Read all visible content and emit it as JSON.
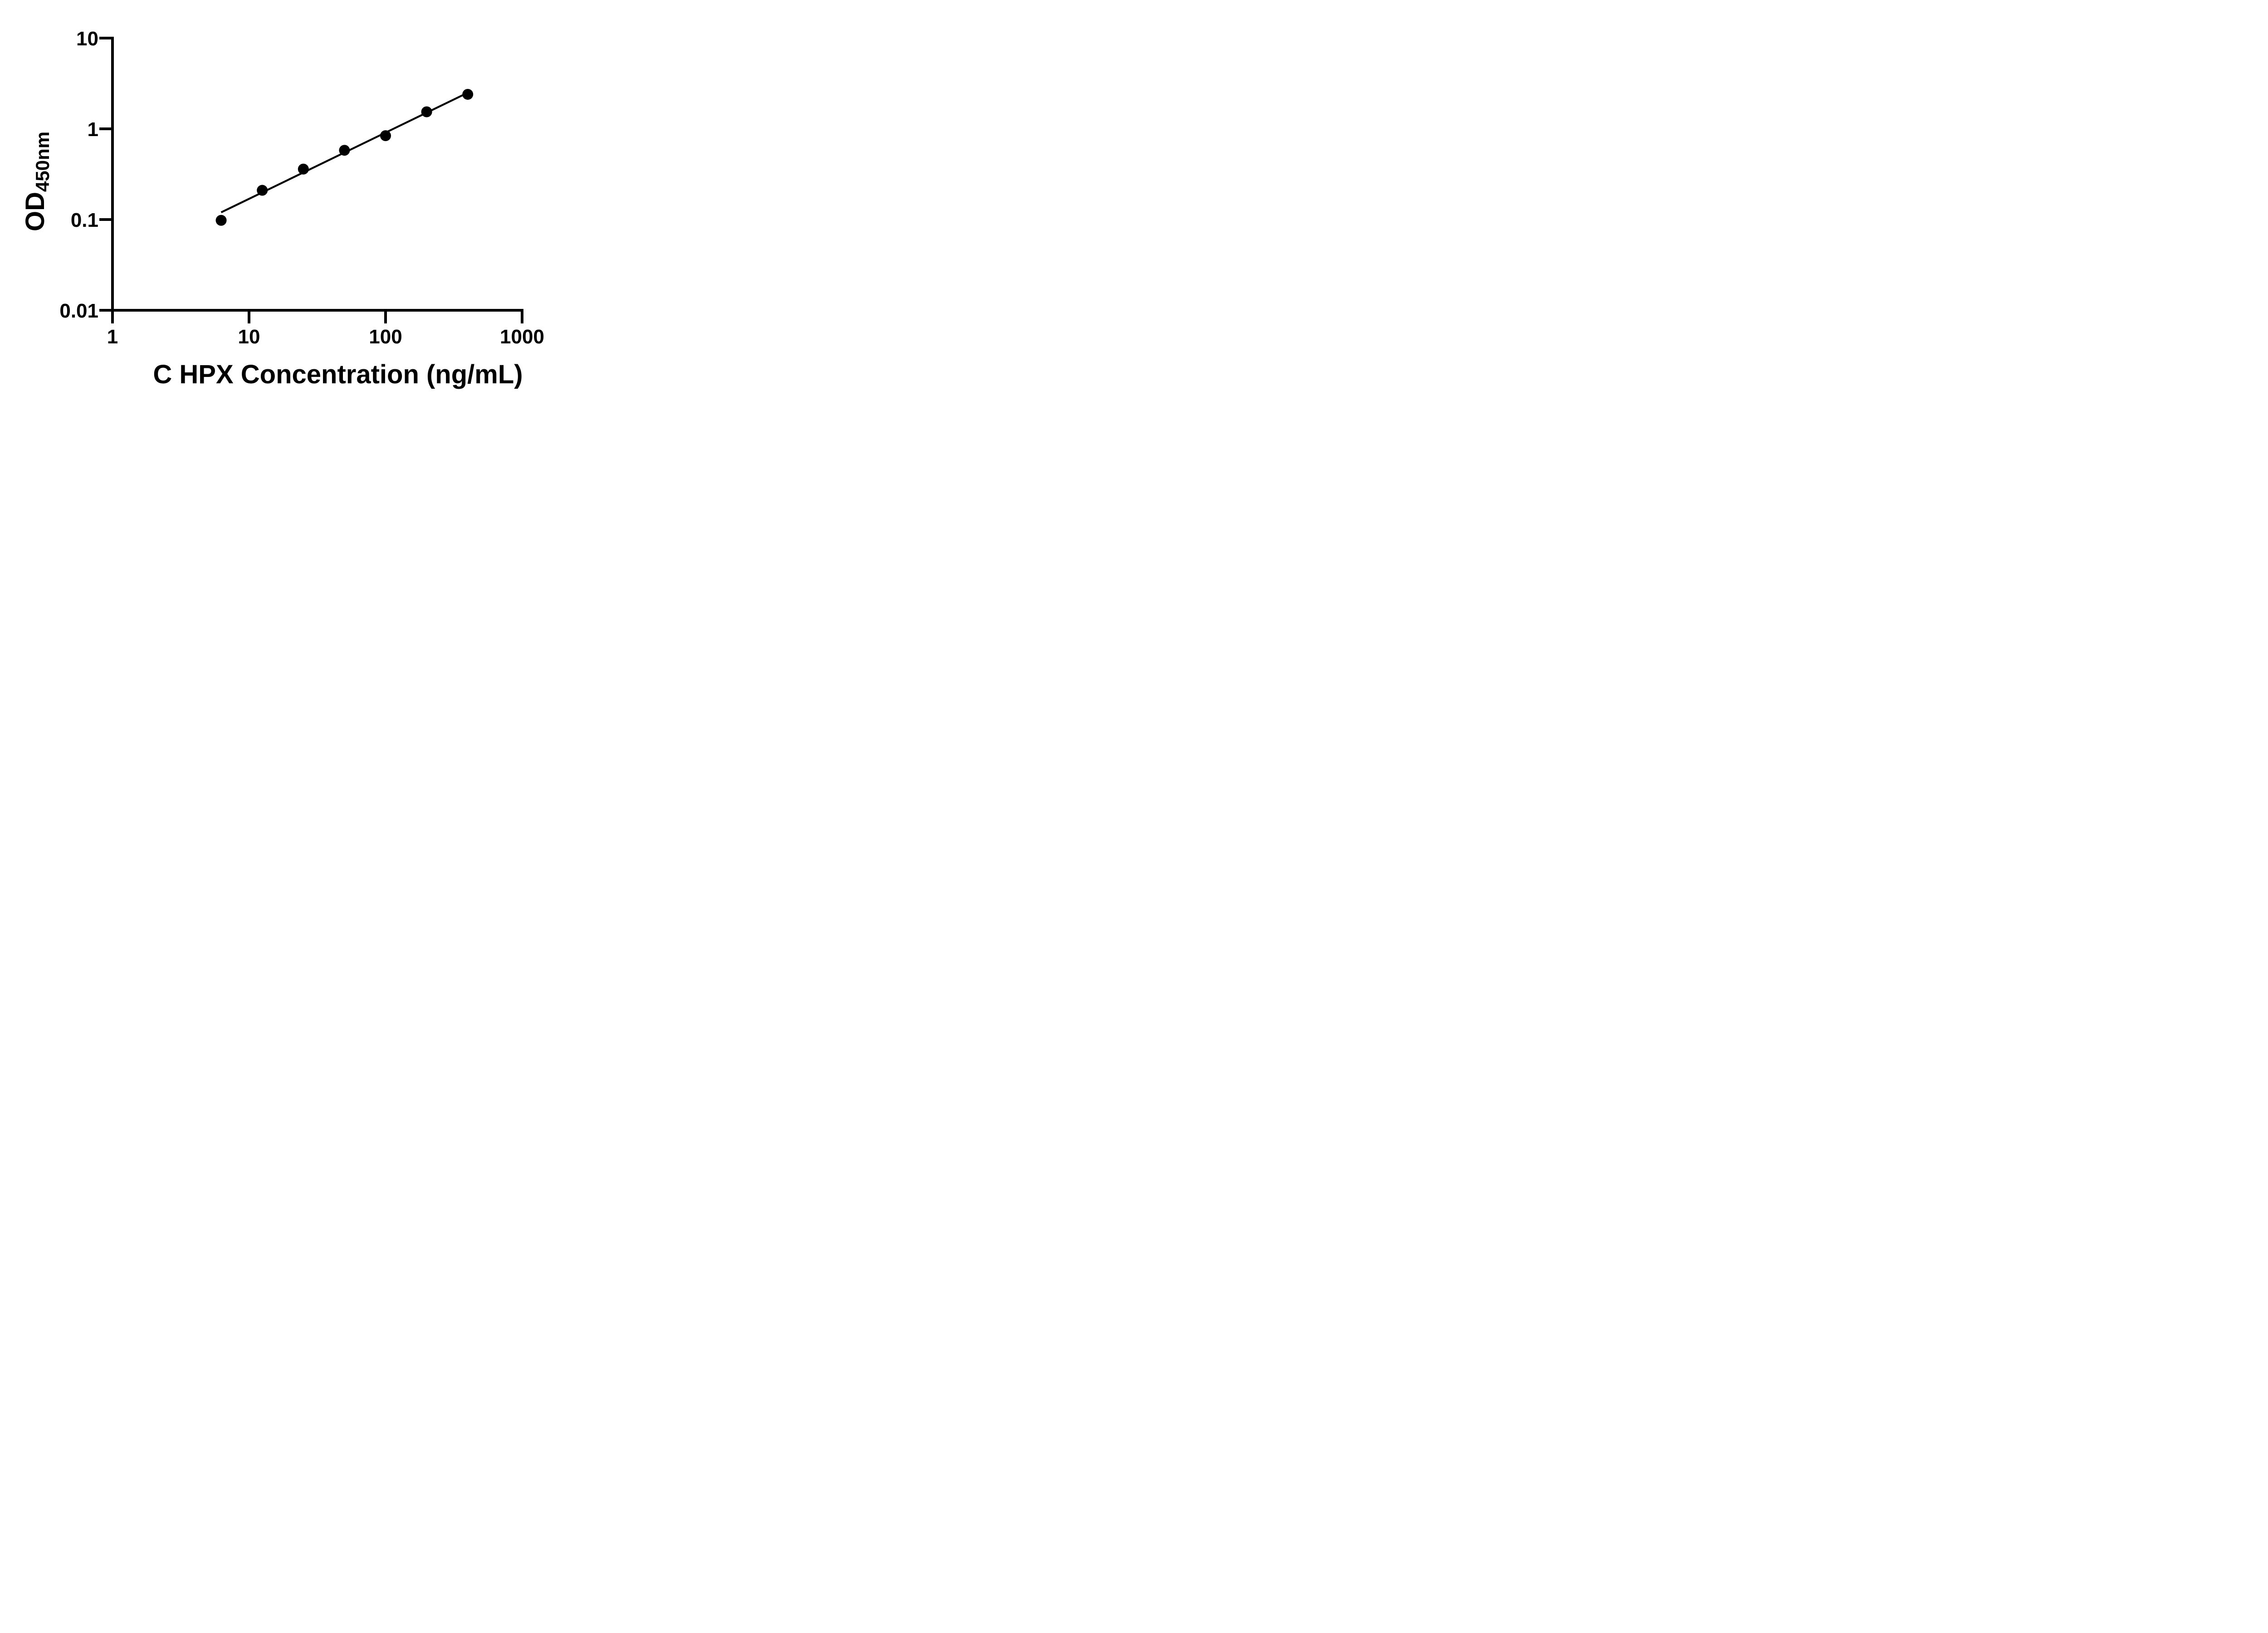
{
  "figure": {
    "background_color": "#ffffff",
    "ink_color": "#000000"
  },
  "chart_data": {
    "type": "scatter",
    "title": "",
    "xlabel": "C HPX Concentration (ng/mL)",
    "ylabel_main": "OD",
    "ylabel_sub": "450nm",
    "x_scale": "log10",
    "y_scale": "log10",
    "xlim": [
      1,
      1000
    ],
    "ylim": [
      0.01,
      10
    ],
    "grid": false,
    "legend": false,
    "x_ticks": [
      {
        "value": 1,
        "label": "1"
      },
      {
        "value": 10,
        "label": "10"
      },
      {
        "value": 100,
        "label": "100"
      },
      {
        "value": 1000,
        "label": "1000"
      }
    ],
    "y_ticks": [
      {
        "value": 10,
        "label": "10"
      },
      {
        "value": 1,
        "label": "1"
      },
      {
        "value": 0.1,
        "label": "0.1"
      },
      {
        "value": 0.01,
        "label": "0.01"
      }
    ],
    "points": [
      {
        "x": 6.25,
        "y": 0.098
      },
      {
        "x": 12.5,
        "y": 0.21
      },
      {
        "x": 25,
        "y": 0.36
      },
      {
        "x": 50,
        "y": 0.58
      },
      {
        "x": 100,
        "y": 0.84
      },
      {
        "x": 200,
        "y": 1.54
      },
      {
        "x": 400,
        "y": 2.4
      }
    ],
    "trend_line": {
      "x1": 6.25,
      "y1": 0.12,
      "x2": 400,
      "y2": 2.5
    },
    "marker": {
      "shape": "circle",
      "fill": "#000000",
      "radius_px": 12
    }
  }
}
